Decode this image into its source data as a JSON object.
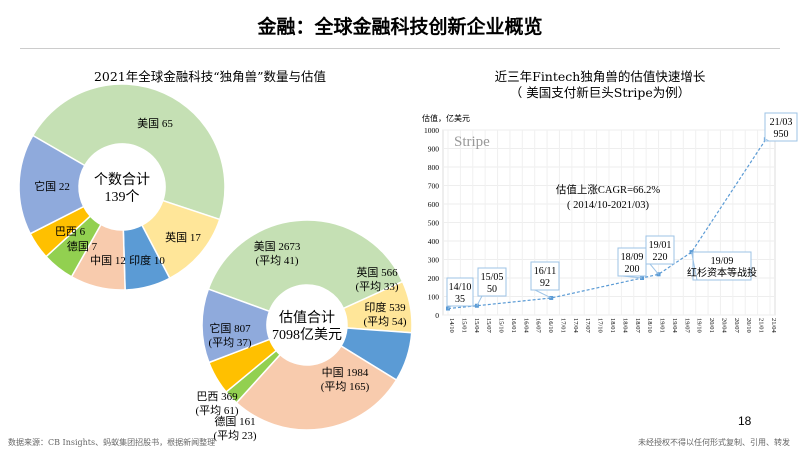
{
  "title": "金融：全球金融科技创新企业概览",
  "left_subtitle": "2021年全球金融科技“独角兽”数量与估值",
  "right_subtitle1": "近三年Fintech独角兽的估值快速增长",
  "right_subtitle2": "（ 美国支付新巨头Stripe为例）",
  "page_number": "18",
  "footer_source": "数据来源：CB Insights、蚂蚁集团招股书，根据新闻整理",
  "footer_note": "未经授权不得以任何形式复制、引用、转发",
  "chart_data": [
    {
      "type": "pie",
      "subtype": "donut",
      "center_label": [
        "个数合计",
        "139个"
      ],
      "categories": [
        "美国",
        "英国",
        "印度",
        "中国",
        "德国",
        "巴西",
        "它国"
      ],
      "values": [
        65,
        17,
        10,
        12,
        7,
        6,
        22
      ],
      "labels": [
        "美国 65",
        "英国 17",
        "印度 10",
        "中国 12",
        "德国 7",
        "巴西 6",
        "它国 22"
      ],
      "colors": [
        "#c5e0b4",
        "#ffe699",
        "#5b9bd5",
        "#f8cbad",
        "#92d050",
        "#ffc000",
        "#8faadc"
      ]
    },
    {
      "type": "pie",
      "subtype": "donut",
      "center_label": [
        "估值合计",
        "7098亿美元"
      ],
      "categories": [
        "美国",
        "英国",
        "印度",
        "中国",
        "德国",
        "巴西",
        "它国"
      ],
      "values": [
        2673,
        566,
        539,
        1984,
        161,
        369,
        807
      ],
      "labels": [
        [
          "美国 2673",
          "(平均 41)"
        ],
        [
          "英国 566",
          "(平均 33)"
        ],
        [
          "印度 539",
          "(平均 54)"
        ],
        [
          "中国 1984",
          "(平均 165)"
        ],
        [
          "德国 161",
          "(平均 23)"
        ],
        [
          "巴西 369",
          "(平均 61)"
        ],
        [
          "它国 807",
          "(平均 37)"
        ]
      ],
      "colors": [
        "#c5e0b4",
        "#ffe699",
        "#5b9bd5",
        "#f8cbad",
        "#92d050",
        "#ffc000",
        "#8faadc"
      ]
    },
    {
      "type": "line",
      "ylabel": "估值，亿美元",
      "ylim": [
        0,
        1000
      ],
      "yticks": [
        0,
        100,
        200,
        300,
        400,
        500,
        600,
        700,
        800,
        900,
        1000
      ],
      "series_label": "Stripe",
      "grid": true,
      "xticks": [
        "14/10",
        "15/01",
        "15/04",
        "15/07",
        "15/10",
        "16/01",
        "16/04",
        "16/07",
        "16/10",
        "17/01",
        "17/04",
        "17/07",
        "17/10",
        "18/01",
        "18/04",
        "18/07",
        "18/10",
        "19/01",
        "19/04",
        "19/07",
        "19/10",
        "20/01",
        "20/04",
        "20/07",
        "20/10",
        "21/01",
        "21/04"
      ],
      "points": [
        {
          "x": "14/10",
          "y": 35
        },
        {
          "x": "15/05",
          "y": 50
        },
        {
          "x": "16/11",
          "y": 92
        },
        {
          "x": "18/09",
          "y": 200
        },
        {
          "x": "19/01",
          "y": 220
        },
        {
          "x": "19/09",
          "y": 340
        },
        {
          "x": "21/03",
          "y": 950
        }
      ],
      "callouts": [
        [
          "14/10",
          "35"
        ],
        [
          "15/05",
          "50"
        ],
        [
          "16/11",
          "92"
        ],
        [
          "18/09",
          "200"
        ],
        [
          "19/01",
          "220"
        ],
        [
          "19/09",
          "红杉资本等战投"
        ],
        [
          "21/03",
          "950"
        ]
      ],
      "annotation": [
        "估值上涨CAGR=66.2%",
        "( 2014/10-2021/03)"
      ],
      "color": "#5b9bd5"
    }
  ]
}
